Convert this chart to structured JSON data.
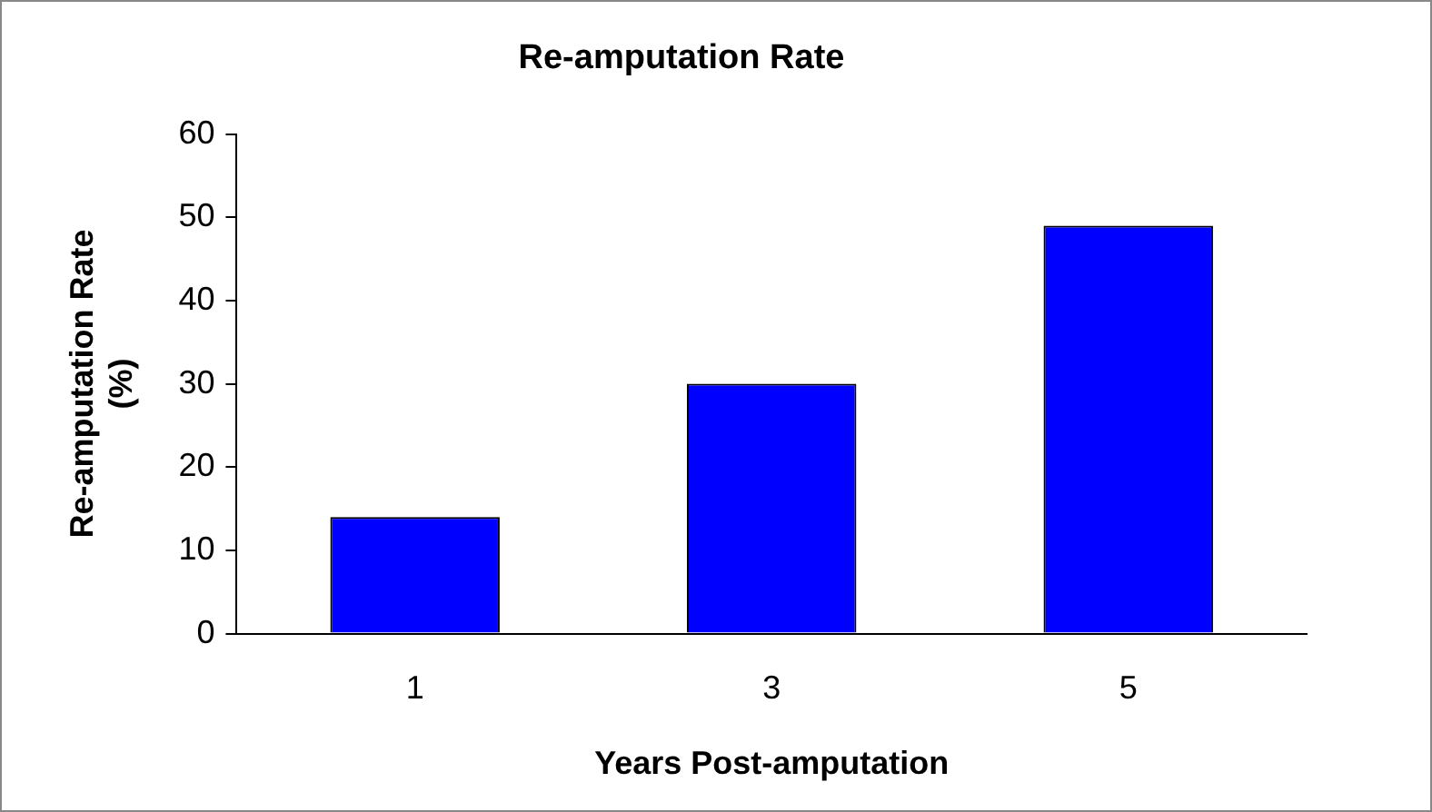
{
  "chart_data": {
    "type": "bar",
    "title": "Re-amputation Rate",
    "xlabel": "Years Post-amputation",
    "ylabel": "Re-amputation Rate (%)",
    "categories": [
      "1",
      "3",
      "5"
    ],
    "values": [
      14,
      30,
      49
    ],
    "color": "#0000ff",
    "ylim": [
      0,
      60
    ],
    "yticks": [
      0,
      10,
      20,
      30,
      40,
      50,
      60
    ],
    "grid": false,
    "legend": false
  }
}
